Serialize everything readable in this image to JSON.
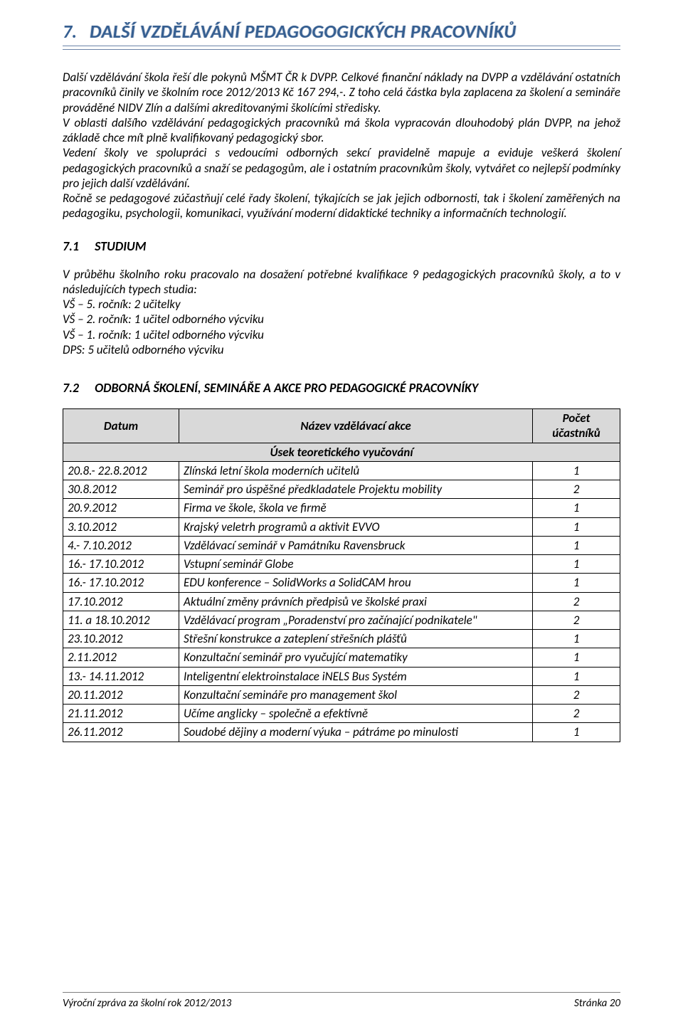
{
  "colors": {
    "heading": "#365f91",
    "rule": "#6b83a8",
    "tableHeaderBg": "#d9d9d9",
    "tableBorder": "#000000",
    "footerRule": "#7f7f7f",
    "text": "#000000",
    "background": "#ffffff"
  },
  "section": {
    "number": "7.",
    "title": "DALŠÍ VZDĚLÁVÁNÍ PEDAGOGOGICKÝCH PRACOVNÍKŮ"
  },
  "paragraphs": {
    "main": "Další vzdělávání škola řeší dle pokynů MŠMT ČR k DVPP. Celkové finanční náklady na DVPP a vzdělávání ostatních pracovníků činily ve školním roce 2012/2013 Kč 167 294,-. Z toho celá částka byla zaplacena za školení a semináře prováděné NIDV Zlín a dalšími akreditovanými školícími středisky.\nV oblasti dalšího vzdělávání pedagogických pracovníků má škola vypracován dlouhodobý plán DVPP, na jehož základě chce mít plně kvalifikovaný pedagogický sbor.\nVedení školy ve spolupráci s vedoucími odborných sekcí pravidelně mapuje a eviduje veškerá školení pedagogických pracovníků a snaží se pedagogům, ale i ostatním pracovníkům školy, vytvářet co nejlepší podmínky pro jejich další vzdělávání.\nRočně se pedagogové zúčastňují celé řady školení, týkajících se jak jejich odbornosti, tak i školení zaměřených na pedagogiku, psychologii, komunikaci, využívání moderní didaktické techniky a informačních technologií.",
    "studium": "V průběhu školního roku pracovalo na dosažení potřebné kvalifikace 9 pedagogických pracovníků školy, a to v následujících typech studia:\nVŠ – 5. ročník: 2 učitelky\nVŠ – 2. ročník: 1 učitel odborného výcviku\nVŠ – 1. ročník: 1 učitel odborného výcviku\nDPS: 5 učitelů odborného výcviku"
  },
  "sub71": {
    "num": "7.1",
    "title": "STUDIUM"
  },
  "sub72": {
    "num": "7.2",
    "title": "ODBORNÁ ŠKOLENÍ, SEMINÁŘE A AKCE PRO PEDAGOGICKÉ PRACOVNÍKY"
  },
  "trainingTable": {
    "header": {
      "date": "Datum",
      "name": "Název vzdělávací akce",
      "count": "Počet účastníků"
    },
    "subheader": "Úsek teoretického vyučování",
    "rows": [
      {
        "date": "20.8.- 22.8.2012",
        "name": "Zlínská letní škola moderních učitelů",
        "count": "1"
      },
      {
        "date": "30.8.2012",
        "name": "Seminář pro úspěšné předkladatele Projektu mobility",
        "count": "2"
      },
      {
        "date": "20.9.2012",
        "name": "Firma ve škole, škola ve firmě",
        "count": "1"
      },
      {
        "date": "3.10.2012",
        "name": "Krajský veletrh programů a aktivit EVVO",
        "count": "1"
      },
      {
        "date": "4.- 7.10.2012",
        "name": "Vzdělávací seminář v Památníku Ravensbruck",
        "count": "1"
      },
      {
        "date": "16.- 17.10.2012",
        "name": "Vstupní seminář Globe",
        "count": "1"
      },
      {
        "date": "16.- 17.10.2012",
        "name": "EDU konference – SolidWorks a SolidCAM hrou",
        "count": "1"
      },
      {
        "date": "17.10.2012",
        "name": "Aktuální změny právních předpisů ve školské praxi",
        "count": "2"
      },
      {
        "date": "11. a 18.10.2012",
        "name": "Vzdělávací program „Poradenství pro začínající podnikatele\"",
        "count": "2"
      },
      {
        "date": "23.10.2012",
        "name": "Střešní konstrukce a zateplení střešních plášťů",
        "count": "1"
      },
      {
        "date": "2.11.2012",
        "name": "Konzultační seminář pro vyučující matematiky",
        "count": "1"
      },
      {
        "date": "13.- 14.11.2012",
        "name": "Inteligentní elektroinstalace iNELS Bus Systém",
        "count": "1"
      },
      {
        "date": "20.11.2012",
        "name": "Konzultační semináře pro management škol",
        "count": "2"
      },
      {
        "date": "21.11.2012",
        "name": "Učíme anglicky – společně a efektivně",
        "count": "2"
      },
      {
        "date": "26.11.2012",
        "name": "Soudobé dějiny a moderní výuka – pátráme po minulosti",
        "count": "1"
      }
    ]
  },
  "footer": {
    "left": "Výroční zpráva za školní rok 2012/2013",
    "right": "Stránka 20"
  }
}
